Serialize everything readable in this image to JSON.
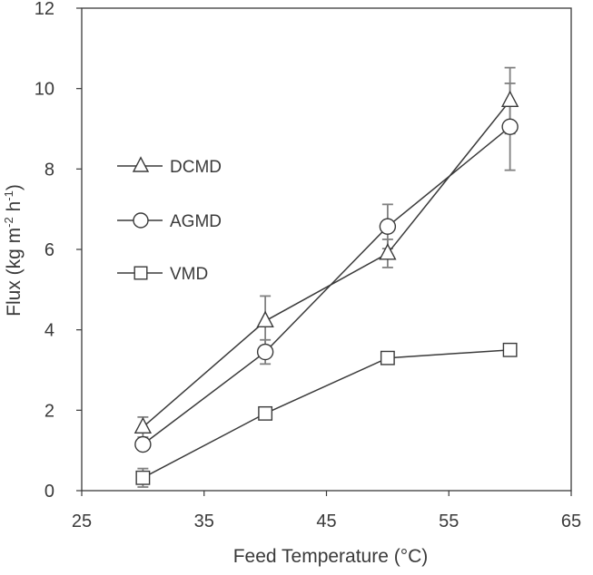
{
  "chart_data": {
    "type": "line",
    "title": "",
    "xlabel": "Feed Temperature (°C)",
    "ylabel": {
      "prefix": "Flux (kg m",
      "sup1": "-2",
      "mid": " h",
      "sup2": "-1",
      "suffix": ")"
    },
    "xlim": [
      25,
      65
    ],
    "ylim": [
      0,
      12
    ],
    "xticks": [
      "25",
      "35",
      "45",
      "55",
      "65"
    ],
    "yticks": [
      "0",
      "2",
      "4",
      "6",
      "8",
      "10",
      "12"
    ],
    "grid": false,
    "legend_position": "left-middle",
    "series": [
      {
        "name": "DCMD",
        "marker": "triangle",
        "x": [
          30,
          40,
          50,
          60
        ],
        "y": [
          1.58,
          4.22,
          5.9,
          9.7
        ],
        "err": [
          0.25,
          0.62,
          0.35,
          0.82
        ]
      },
      {
        "name": "AGMD",
        "marker": "circle",
        "x": [
          30,
          40,
          50,
          60
        ],
        "y": [
          1.15,
          3.45,
          6.57,
          9.05
        ],
        "err": [
          0.0,
          0.3,
          0.55,
          1.08
        ]
      },
      {
        "name": "VMD",
        "marker": "square",
        "x": [
          30,
          40,
          50,
          60
        ],
        "y": [
          0.32,
          1.92,
          3.3,
          3.5
        ],
        "err": [
          0.23,
          0.0,
          0.0,
          0.0
        ]
      }
    ],
    "colors": {
      "line": "#3a3a3a",
      "marker_fill": "#ffffff",
      "error_bar": "#808080",
      "frame": "#3a3a3a"
    }
  }
}
